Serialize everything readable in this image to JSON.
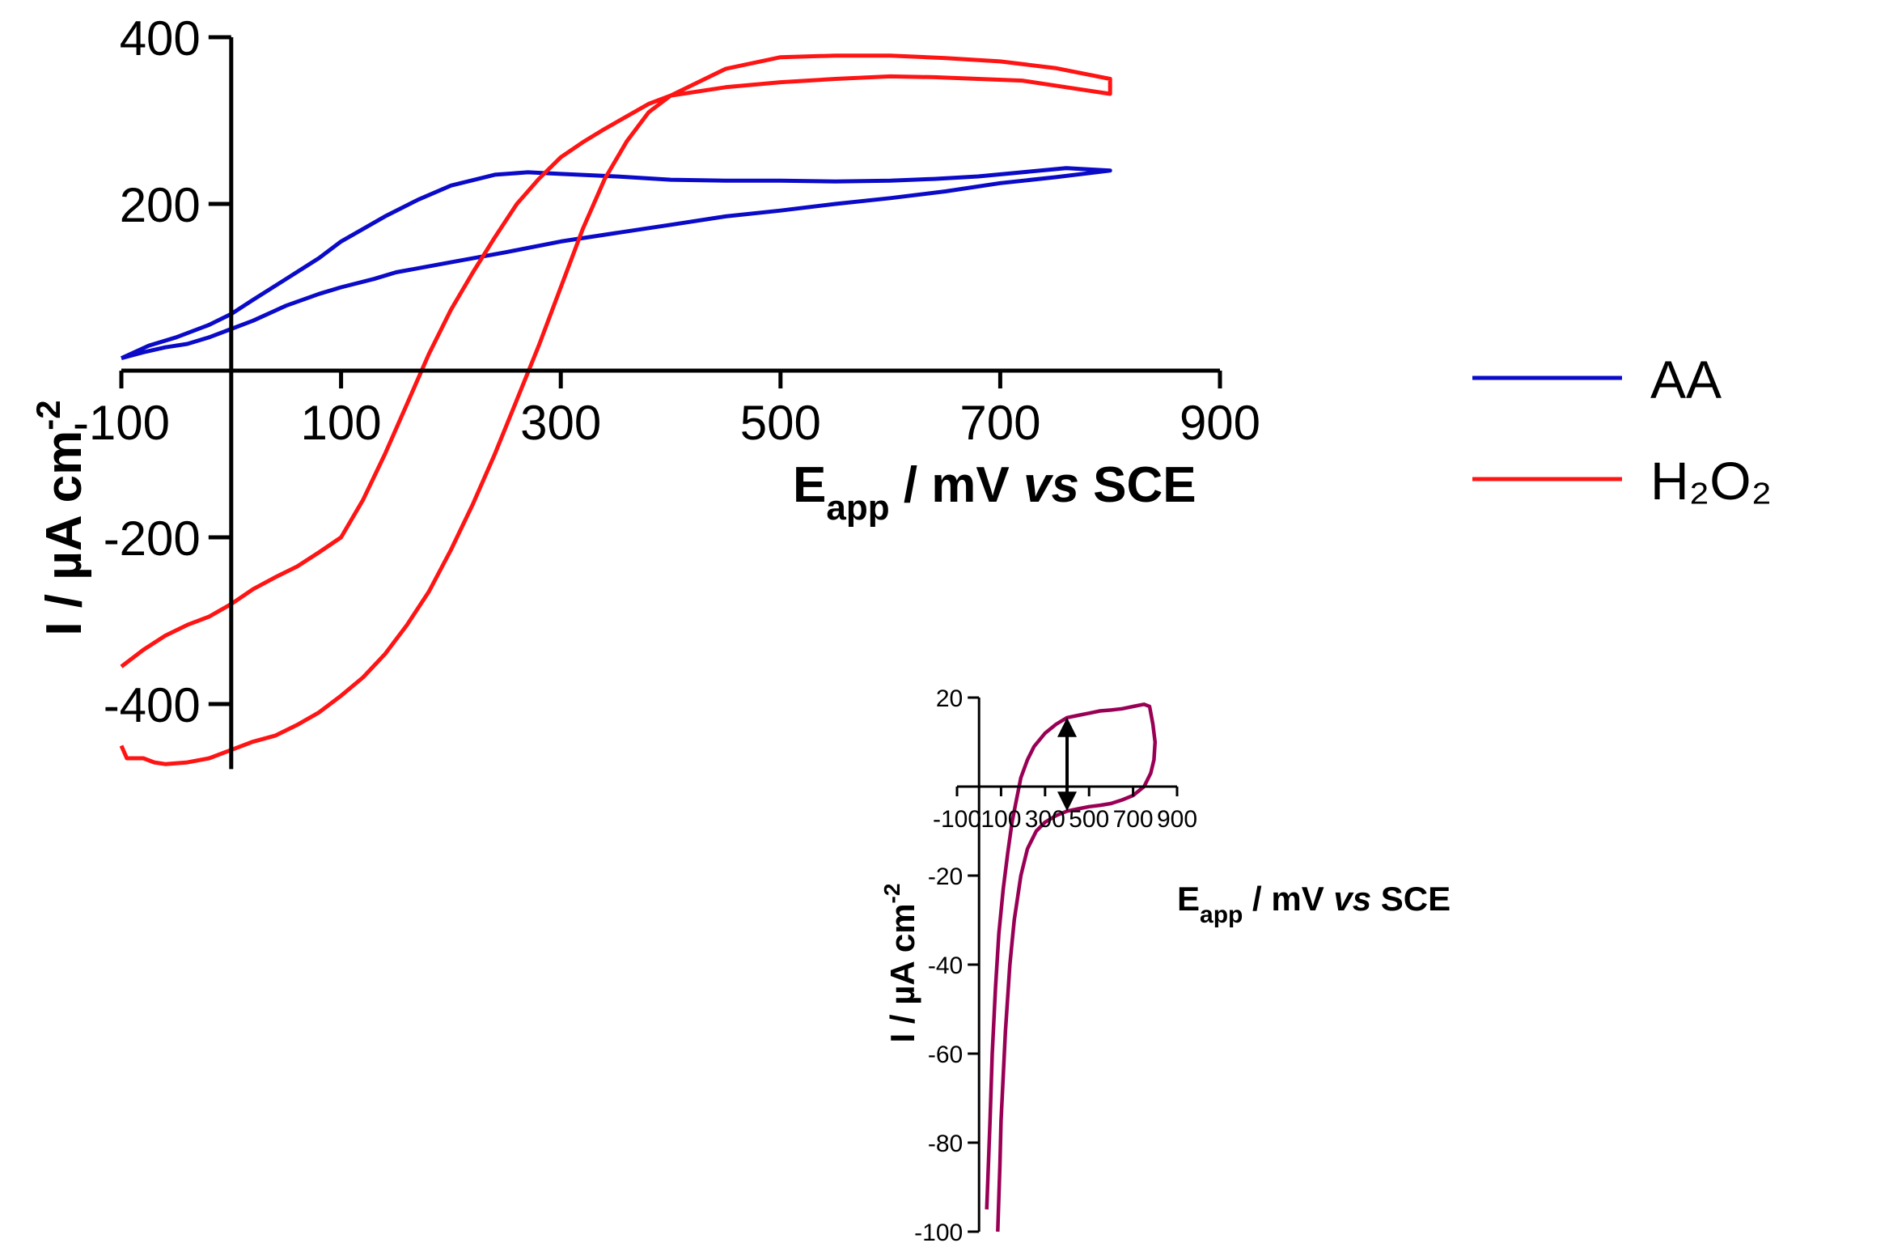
{
  "chart_data": [
    {
      "type": "line",
      "xlabel": {
        "main": "E",
        "sub": "app",
        "mid": " / mV ",
        "italic": "vs",
        "tail": " SCE"
      },
      "ylabel": {
        "pre": "I / µA cm",
        "sup": "-2"
      },
      "xlim": [
        -100,
        900
      ],
      "ylim": [
        -480,
        400
      ],
      "xticks": [
        "-100",
        "100",
        "300",
        "500",
        "700",
        "900"
      ],
      "yticks": [
        "400",
        "200",
        "-200",
        "-400"
      ],
      "legend_position": "right",
      "series": [
        {
          "name": "AA",
          "color": "#0a0ac8",
          "points": [
            [
              -100,
              15
            ],
            [
              -80,
              22
            ],
            [
              -60,
              28
            ],
            [
              -40,
              32
            ],
            [
              -20,
              40
            ],
            [
              0,
              50
            ],
            [
              20,
              60
            ],
            [
              50,
              78
            ],
            [
              80,
              92
            ],
            [
              100,
              100
            ],
            [
              130,
              110
            ],
            [
              150,
              118
            ],
            [
              200,
              130
            ],
            [
              250,
              142
            ],
            [
              300,
              155
            ],
            [
              350,
              165
            ],
            [
              400,
              175
            ],
            [
              450,
              185
            ],
            [
              500,
              192
            ],
            [
              550,
              200
            ],
            [
              600,
              207
            ],
            [
              650,
              215
            ],
            [
              700,
              225
            ],
            [
              750,
              232
            ],
            [
              800,
              240
            ],
            [
              760,
              243
            ],
            [
              720,
              238
            ],
            [
              680,
              233
            ],
            [
              640,
              230
            ],
            [
              600,
              228
            ],
            [
              550,
              227
            ],
            [
              500,
              228
            ],
            [
              450,
              228
            ],
            [
              400,
              229
            ],
            [
              350,
              233
            ],
            [
              300,
              236
            ],
            [
              270,
              238
            ],
            [
              240,
              235
            ],
            [
              200,
              222
            ],
            [
              170,
              205
            ],
            [
              140,
              185
            ],
            [
              100,
              155
            ],
            [
              80,
              135
            ],
            [
              50,
              110
            ],
            [
              20,
              85
            ],
            [
              0,
              68
            ],
            [
              -20,
              55
            ],
            [
              -50,
              40
            ],
            [
              -75,
              30
            ],
            [
              -100,
              15
            ]
          ]
        },
        {
          "name": "H₂O₂",
          "color": "#ff1414",
          "points": [
            [
              -100,
              -450
            ],
            [
              -95,
              -465
            ],
            [
              -80,
              -465
            ],
            [
              -70,
              -470
            ],
            [
              -60,
              -472
            ],
            [
              -40,
              -470
            ],
            [
              -20,
              -465
            ],
            [
              0,
              -455
            ],
            [
              20,
              -445
            ],
            [
              40,
              -438
            ],
            [
              60,
              -425
            ],
            [
              80,
              -410
            ],
            [
              100,
              -390
            ],
            [
              120,
              -368
            ],
            [
              140,
              -340
            ],
            [
              160,
              -305
            ],
            [
              180,
              -265
            ],
            [
              200,
              -215
            ],
            [
              220,
              -160
            ],
            [
              240,
              -100
            ],
            [
              260,
              -35
            ],
            [
              280,
              30
            ],
            [
              300,
              100
            ],
            [
              320,
              170
            ],
            [
              340,
              230
            ],
            [
              360,
              275
            ],
            [
              380,
              310
            ],
            [
              400,
              330
            ],
            [
              450,
              362
            ],
            [
              500,
              376
            ],
            [
              550,
              378
            ],
            [
              600,
              378
            ],
            [
              650,
              375
            ],
            [
              700,
              371
            ],
            [
              750,
              363
            ],
            [
              800,
              350
            ],
            [
              800,
              332
            ],
            [
              760,
              340
            ],
            [
              720,
              348
            ],
            [
              680,
              350
            ],
            [
              640,
              352
            ],
            [
              600,
              353
            ],
            [
              550,
              350
            ],
            [
              500,
              346
            ],
            [
              450,
              340
            ],
            [
              400,
              330
            ],
            [
              380,
              320
            ],
            [
              360,
              305
            ],
            [
              340,
              290
            ],
            [
              320,
              274
            ],
            [
              300,
              256
            ],
            [
              280,
              230
            ],
            [
              260,
              200
            ],
            [
              240,
              160
            ],
            [
              220,
              118
            ],
            [
              200,
              73
            ],
            [
              180,
              20
            ],
            [
              160,
              -40
            ],
            [
              140,
              -100
            ],
            [
              120,
              -155
            ],
            [
              100,
              -200
            ],
            [
              80,
              -218
            ],
            [
              60,
              -235
            ],
            [
              40,
              -248
            ],
            [
              20,
              -262
            ],
            [
              0,
              -280
            ],
            [
              -20,
              -295
            ],
            [
              -40,
              -305
            ],
            [
              -60,
              -318
            ],
            [
              -80,
              -335
            ],
            [
              -100,
              -355
            ]
          ]
        }
      ]
    },
    {
      "type": "line",
      "xlabel": {
        "main": "E",
        "sub": "app",
        "mid": " / mV ",
        "italic": "vs",
        "tail": " SCE"
      },
      "ylabel": {
        "pre": "I / µA cm",
        "sup": "-2"
      },
      "xlim": [
        -100,
        900
      ],
      "ylim": [
        -100,
        20
      ],
      "xticks": [
        "-100",
        "100",
        "300",
        "500",
        "700",
        "900"
      ],
      "yticks": [
        "20",
        "-20",
        "-40",
        "-60",
        "-80",
        "-100"
      ],
      "annotation": "double-headed arrow at 400 mV spanning the gap between the two sweeps",
      "series": [
        {
          "name": "",
          "color": "#990055",
          "points": [
            [
              35,
              -95
            ],
            [
              50,
              -75
            ],
            [
              60,
              -60
            ],
            [
              75,
              -45
            ],
            [
              90,
              -33
            ],
            [
              110,
              -23
            ],
            [
              130,
              -15
            ],
            [
              150,
              -8
            ],
            [
              170,
              -3
            ],
            [
              190,
              2
            ],
            [
              220,
              6
            ],
            [
              250,
              9
            ],
            [
              300,
              12
            ],
            [
              350,
              14
            ],
            [
              400,
              15.5
            ],
            [
              450,
              16
            ],
            [
              500,
              16.5
            ],
            [
              550,
              17
            ],
            [
              600,
              17.2
            ],
            [
              650,
              17.5
            ],
            [
              700,
              18
            ],
            [
              750,
              18.5
            ],
            [
              775,
              18
            ],
            [
              790,
              14
            ],
            [
              800,
              10
            ],
            [
              795,
              6
            ],
            [
              780,
              3
            ],
            [
              750,
              0
            ],
            [
              700,
              -2
            ],
            [
              650,
              -3
            ],
            [
              600,
              -3.8
            ],
            [
              550,
              -4.2
            ],
            [
              500,
              -4.5
            ],
            [
              450,
              -5
            ],
            [
              400,
              -5.5
            ],
            [
              350,
              -6.5
            ],
            [
              300,
              -8
            ],
            [
              260,
              -10
            ],
            [
              220,
              -14
            ],
            [
              190,
              -20
            ],
            [
              160,
              -30
            ],
            [
              140,
              -40
            ],
            [
              120,
              -55
            ],
            [
              100,
              -75
            ],
            [
              95,
              -85
            ],
            [
              85,
              -100
            ]
          ]
        }
      ]
    }
  ]
}
